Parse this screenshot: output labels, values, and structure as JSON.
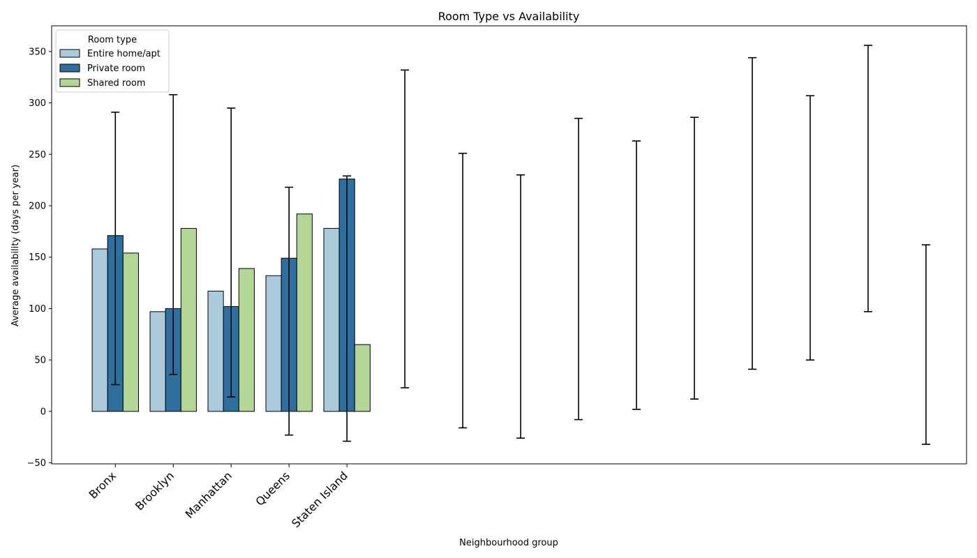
{
  "chart_data": {
    "type": "bar",
    "title": "Room Type vs Availability",
    "xlabel": "Neighbourhood group",
    "ylabel": "Average availability (days per year)",
    "ylim": [
      -51,
      375
    ],
    "yticks": [
      -50,
      0,
      50,
      100,
      150,
      200,
      250,
      300,
      350
    ],
    "grid": false,
    "categories": [
      "Bronx",
      "Brooklyn",
      "Manhattan",
      "Queens",
      "Staten Island"
    ],
    "series": [
      {
        "name": "Entire home/apt",
        "color": "#abcbdc",
        "values": [
          158,
          97,
          117,
          132,
          178
        ]
      },
      {
        "name": "Private room",
        "color": "#2e6fa0",
        "values": [
          171,
          100,
          102,
          149,
          226
        ]
      },
      {
        "name": "Shared room",
        "color": "#b3d595",
        "values": [
          154,
          178,
          139,
          192,
          65
        ]
      }
    ],
    "error_bars": [
      {
        "x": 0,
        "low": 26,
        "high": 291
      },
      {
        "x": 1,
        "low": 36,
        "high": 308
      },
      {
        "x": 2,
        "low": 14,
        "high": 295
      },
      {
        "x": 3,
        "low": -23,
        "high": 218
      },
      {
        "x": 4,
        "low": -29,
        "high": 229
      },
      {
        "x": 5,
        "low": 23,
        "high": 332
      },
      {
        "x": 6,
        "low": -16,
        "high": 251
      },
      {
        "x": 7,
        "low": -26,
        "high": 230
      },
      {
        "x": 8,
        "low": -8,
        "high": 285
      },
      {
        "x": 9,
        "low": 2,
        "high": 263
      },
      {
        "x": 10,
        "low": 12,
        "high": 286
      },
      {
        "x": 11,
        "low": 41,
        "high": 344
      },
      {
        "x": 12,
        "low": 50,
        "high": 307
      },
      {
        "x": 13,
        "low": 97,
        "high": 356
      },
      {
        "x": 14,
        "low": -32,
        "high": 162
      }
    ],
    "legend": {
      "title": "Room type",
      "position": "top-left"
    }
  }
}
